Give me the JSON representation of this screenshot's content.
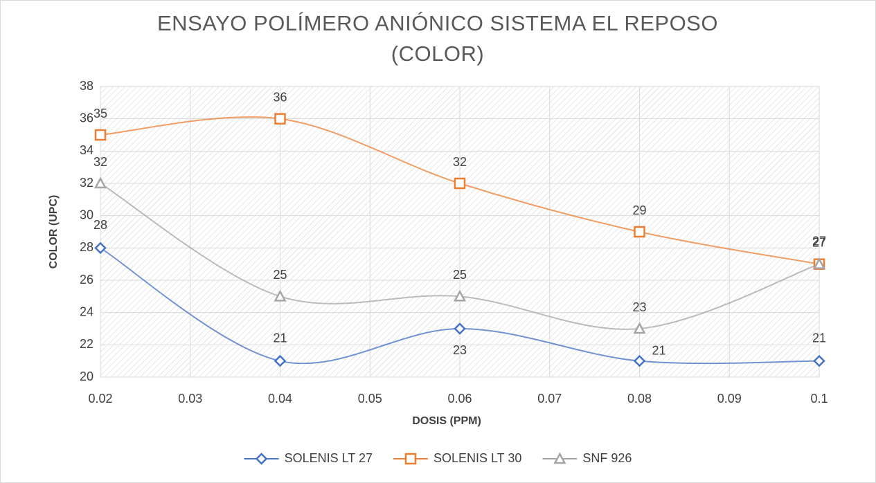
{
  "chart_data": {
    "type": "line",
    "title": "ENSAYO POLÍMERO ANIÓNICO SISTEMA EL REPOSO (COLOR)",
    "x_label": "DOSIS (PPM)",
    "y_label": "COLOR (UPC)",
    "x": [
      0.02,
      0.04,
      0.06,
      0.08,
      0.1
    ],
    "series": [
      {
        "name": "SOLENIS LT 27",
        "color": "#4472c4",
        "marker": "diamond",
        "values": [
          28,
          21,
          23,
          21,
          21
        ]
      },
      {
        "name": "SOLENIS LT 30",
        "color": "#ed7d31",
        "marker": "square",
        "values": [
          35,
          36,
          32,
          29,
          27
        ]
      },
      {
        "name": "SNF 926",
        "color": "#a5a5a5",
        "marker": "triangle",
        "values": [
          32,
          25,
          25,
          23,
          27
        ]
      }
    ],
    "xlim": [
      0.02,
      0.1
    ],
    "xticks": [
      0.02,
      0.03,
      0.04,
      0.05,
      0.06,
      0.07,
      0.08,
      0.09,
      0.1
    ],
    "ylim": [
      20,
      38
    ],
    "yticks": [
      20,
      22,
      24,
      26,
      28,
      30,
      32,
      34,
      36,
      38
    ],
    "grid": true,
    "smooth": true,
    "legend": "bottom"
  }
}
